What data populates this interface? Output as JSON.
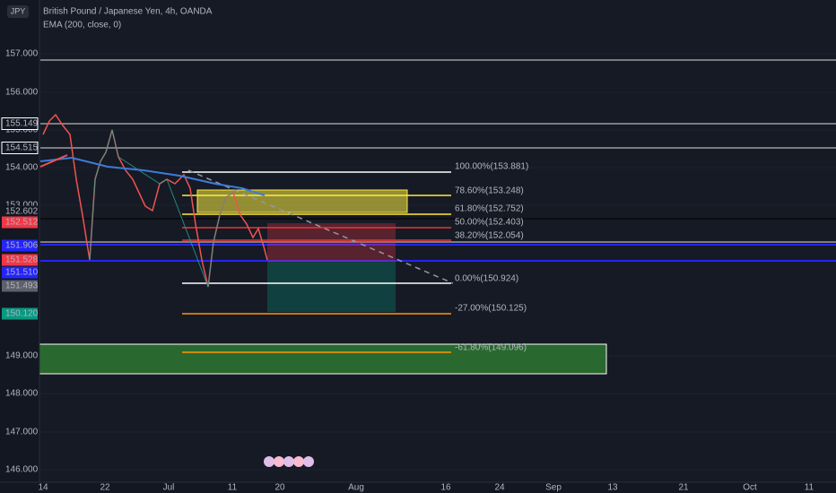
{
  "header": {
    "symbol_badge": "JPY",
    "title": "British Pound / Japanese Yen, 4h, OANDA",
    "indicator": "EMA (200, close, 0)"
  },
  "y_axis": {
    "labels": [
      "157.000",
      "156.000",
      "155.000",
      "154.000",
      "153.000",
      "149.000",
      "148.000",
      "147.000",
      "146.000"
    ]
  },
  "x_axis": {
    "labels": [
      "14",
      "22",
      "Jul",
      "11",
      "20",
      "Aug",
      "16",
      "24",
      "Sep",
      "13",
      "21",
      "Oct",
      "11"
    ]
  },
  "price_tags": [
    {
      "label": "155.149",
      "color": "#ffffff"
    },
    {
      "label": "154.515",
      "color": "#ffffff"
    },
    {
      "label": "152.602",
      "color": "#131722"
    },
    {
      "label": "152.512",
      "color": "#f23645"
    },
    {
      "label": "151.906",
      "color": "#2424ff"
    },
    {
      "label": "151.528",
      "color": "#f23645"
    },
    {
      "label": "151.510",
      "color": "#2424ff"
    },
    {
      "label": "151.493",
      "color": "#5d606b"
    },
    {
      "label": "150.120",
      "color": "#089981"
    }
  ],
  "fib_levels": [
    {
      "label": "100.00%(153.881)",
      "color": "#ffffff"
    },
    {
      "label": "78.60%(153.248)",
      "color": "#ffeb3b"
    },
    {
      "label": "61.80%(152.752)",
      "color": "#ffeb3b"
    },
    {
      "label": "50.00%(152.403)",
      "color": "#e53935"
    },
    {
      "label": "38.20%(152.054)",
      "color": "#e53935"
    },
    {
      "label": "0.00%(150.924)",
      "color": "#ffffff"
    },
    {
      "label": "-27.00%(150.125)",
      "color": "#ff9800"
    },
    {
      "label": "-61.80%(149.096)",
      "color": "#ff9800"
    }
  ]
}
